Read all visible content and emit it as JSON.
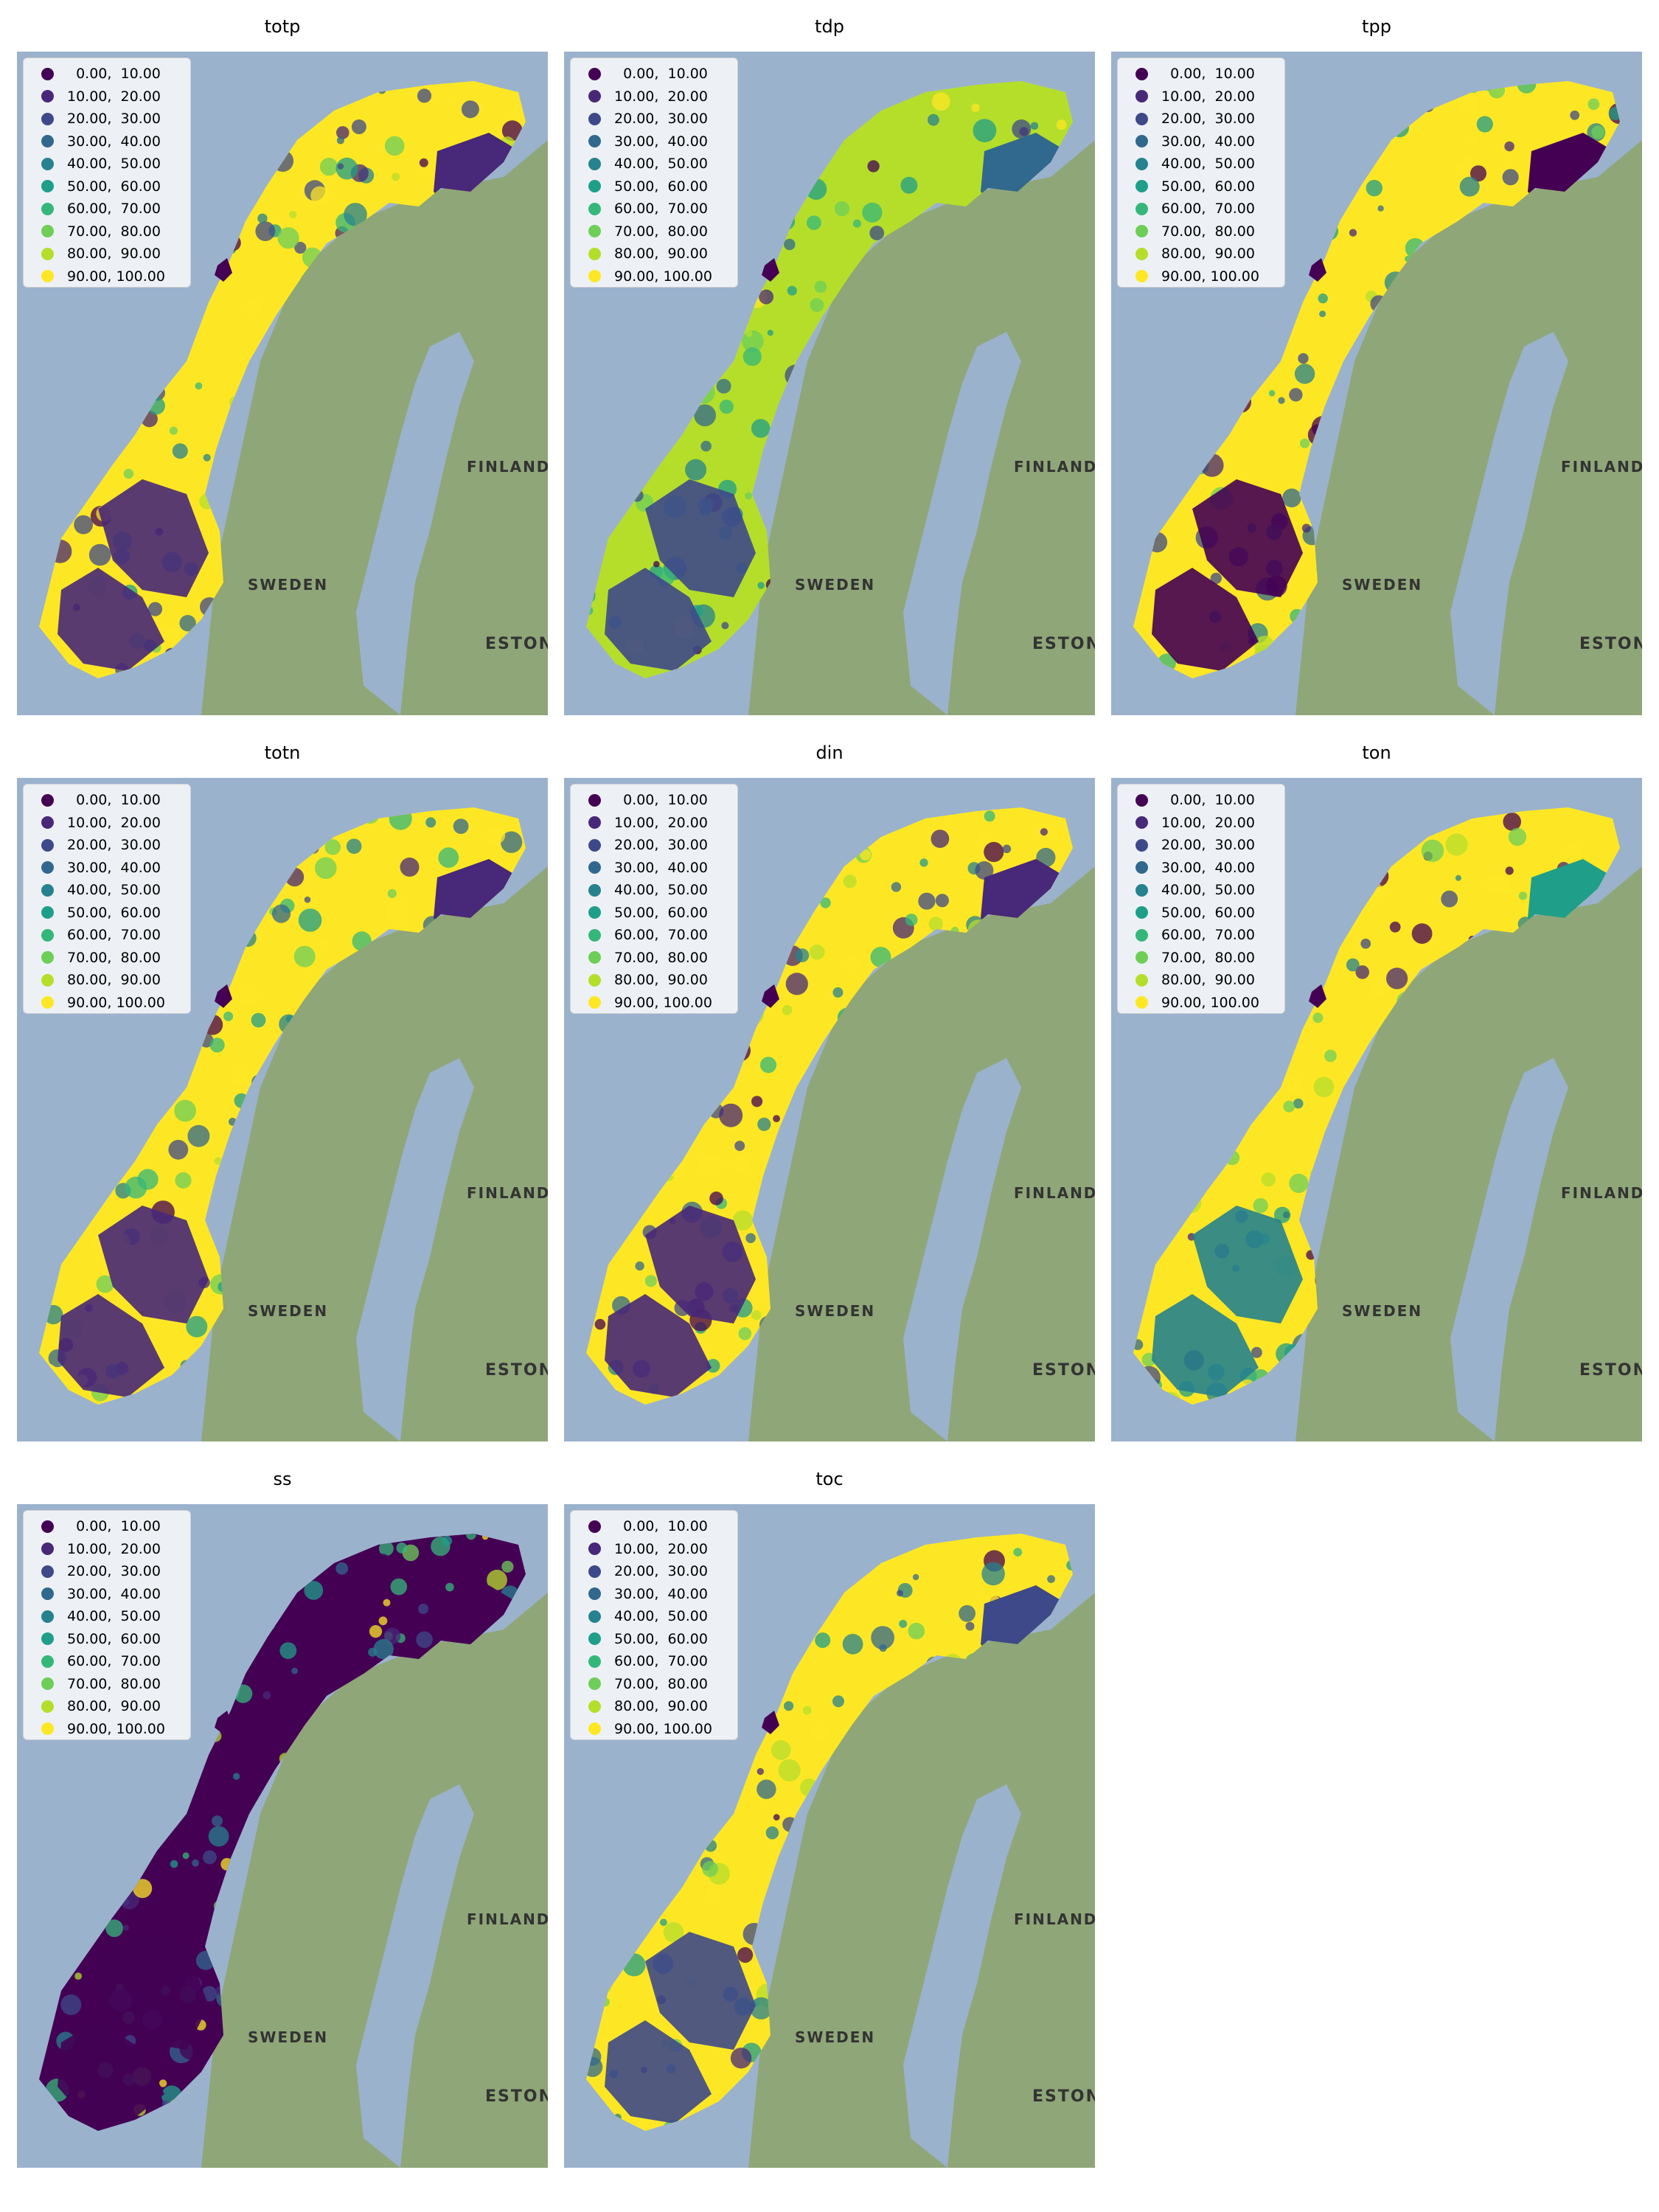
{
  "colors": {
    "ocean": "#9bb2cd",
    "land": "#8fa678",
    "viridis": [
      "#440154",
      "#482878",
      "#3e4989",
      "#31688e",
      "#26828e",
      "#1f9e89",
      "#35b779",
      "#6ece58",
      "#b5de2b",
      "#fde725"
    ]
  },
  "legend_entries": [
    "  0.00,  10.00",
    "10.00,  20.00",
    "20.00,  30.00",
    "30.00,  40.00",
    "40.00,  50.00",
    "50.00,  60.00",
    "60.00,  70.00",
    "70.00,  80.00",
    "80.00,  90.00",
    "90.00, 100.00"
  ],
  "basemap_labels": {
    "sweden": "SWEDEN",
    "finland": "FINLAND",
    "estonia": "ESTONI"
  },
  "maps": [
    {
      "title": "totp",
      "dominant_color": "#fde725",
      "south_color": "#482878",
      "northeast_color": "#482878"
    },
    {
      "title": "tdp",
      "dominant_color": "#b5de2b",
      "south_color": "#3e4989",
      "northeast_color": "#31688e"
    },
    {
      "title": "tpp",
      "dominant_color": "#fde725",
      "south_color": "#440154",
      "northeast_color": "#440154"
    },
    {
      "title": "totn",
      "dominant_color": "#fde725",
      "south_color": "#482878",
      "northeast_color": "#482878"
    },
    {
      "title": "din",
      "dominant_color": "#fde725",
      "south_color": "#482878",
      "northeast_color": "#482878"
    },
    {
      "title": "ton",
      "dominant_color": "#fde725",
      "south_color": "#26828e",
      "northeast_color": "#1f9e89"
    },
    {
      "title": "ss",
      "dominant_color": "#440154",
      "south_color": "#440154",
      "northeast_color": "#440154"
    },
    {
      "title": "toc",
      "dominant_color": "#fde725",
      "south_color": "#3e4989",
      "northeast_color": "#3e4989"
    }
  ]
}
